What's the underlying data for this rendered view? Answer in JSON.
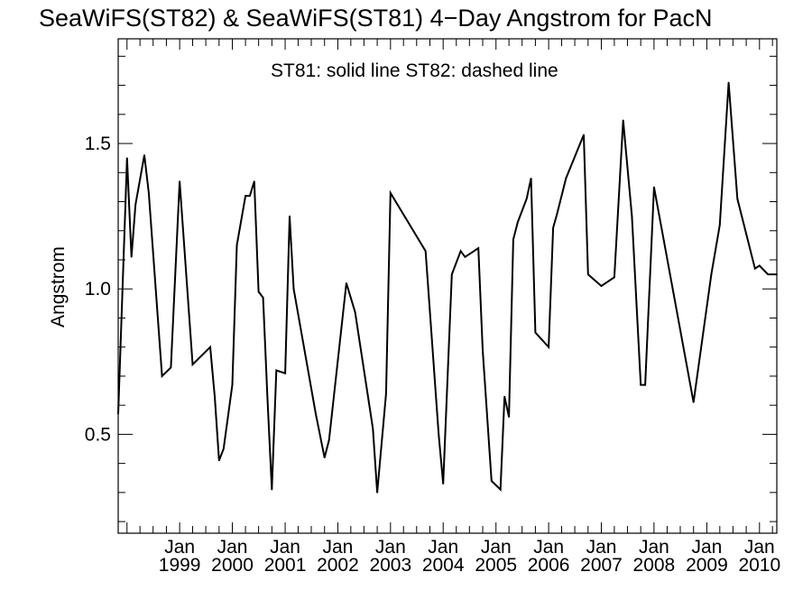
{
  "chart_data": {
    "type": "line",
    "title": "SeaWiFS(ST82) & SeaWiFS(ST81) 4−Day Angstrom for PacN",
    "annotation": "ST81: solid line   ST82: dashed line",
    "xlabel": "",
    "ylabel": "Angstrom",
    "ylim": [
      0.16,
      1.86
    ],
    "xlim": [
      "1997-11-01",
      "2010-05-01"
    ],
    "yticks": [
      {
        "value": 0.5,
        "label": "0.5"
      },
      {
        "value": 1.0,
        "label": "1.0"
      },
      {
        "value": 1.5,
        "label": "1.5"
      }
    ],
    "xticks": [
      {
        "date": "1999-01-01",
        "month": "Jan",
        "year": "1999"
      },
      {
        "date": "2000-01-01",
        "month": "Jan",
        "year": "2000"
      },
      {
        "date": "2001-01-01",
        "month": "Jan",
        "year": "2001"
      },
      {
        "date": "2002-01-01",
        "month": "Jan",
        "year": "2002"
      },
      {
        "date": "2003-01-01",
        "month": "Jan",
        "year": "2003"
      },
      {
        "date": "2004-01-01",
        "month": "Jan",
        "year": "2004"
      },
      {
        "date": "2005-01-01",
        "month": "Jan",
        "year": "2005"
      },
      {
        "date": "2006-01-01",
        "month": "Jan",
        "year": "2006"
      },
      {
        "date": "2007-01-01",
        "month": "Jan",
        "year": "2007"
      },
      {
        "date": "2008-01-01",
        "month": "Jan",
        "year": "2008"
      },
      {
        "date": "2009-01-01",
        "month": "Jan",
        "year": "2009"
      },
      {
        "date": "2010-01-01",
        "month": "Jan",
        "year": "2010"
      }
    ],
    "grid": false,
    "series": [
      {
        "name": "ST81",
        "style": "solid",
        "color": "#000000",
        "x": [
          "1997-11-01",
          "1998-01-01",
          "1998-02-01",
          "1998-03-01",
          "1998-05-01",
          "1998-06-01",
          "1998-08-01",
          "1998-09-01",
          "1998-11-01",
          "1999-01-01",
          "1999-04-01",
          "1999-08-01",
          "1999-09-01",
          "1999-10-01",
          "1999-11-01",
          "2000-01-01",
          "2000-02-01",
          "2000-04-01",
          "2000-05-01",
          "2000-06-01",
          "2000-07-01",
          "2000-08-01",
          "2000-09-01",
          "2000-10-01",
          "2000-11-01",
          "2001-01-01",
          "2001-02-01",
          "2001-03-01",
          "2001-08-01",
          "2001-10-01",
          "2001-11-01",
          "2002-03-01",
          "2002-05-01",
          "2002-09-01",
          "2002-10-01",
          "2002-12-01",
          "2003-01-01",
          "2003-09-01",
          "2003-12-01",
          "2004-01-01",
          "2004-03-01",
          "2004-05-01",
          "2004-06-01",
          "2004-09-01",
          "2004-10-01",
          "2004-12-01",
          "2005-02-01",
          "2005-03-01",
          "2005-04-01",
          "2005-05-01",
          "2005-06-01",
          "2005-08-01",
          "2005-09-01",
          "2005-10-01",
          "2006-01-01",
          "2006-02-01",
          "2006-03-01",
          "2006-05-01",
          "2006-09-01",
          "2006-10-01",
          "2007-01-01",
          "2007-04-01",
          "2007-06-01",
          "2007-08-01",
          "2007-10-01",
          "2007-11-01",
          "2008-01-01",
          "2008-10-01",
          "2009-02-01",
          "2009-04-01",
          "2009-06-01",
          "2009-08-01",
          "2009-12-01",
          "2010-01-01",
          "2010-03-01",
          "2010-04-01",
          "2010-05-01"
        ],
        "y": [
          0.57,
          1.45,
          1.11,
          1.29,
          1.46,
          1.33,
          0.91,
          0.7,
          0.73,
          1.37,
          0.74,
          0.8,
          0.63,
          0.41,
          0.45,
          0.67,
          1.15,
          1.32,
          1.32,
          1.37,
          0.99,
          0.97,
          0.62,
          0.31,
          0.72,
          0.71,
          1.25,
          1.0,
          0.57,
          0.42,
          0.48,
          1.02,
          0.92,
          0.52,
          0.3,
          0.64,
          1.33,
          1.13,
          0.5,
          0.33,
          1.05,
          1.13,
          1.11,
          1.14,
          0.79,
          0.34,
          0.31,
          0.63,
          0.56,
          1.17,
          1.23,
          1.31,
          1.38,
          0.85,
          0.8,
          1.21,
          1.26,
          1.38,
          1.53,
          1.05,
          1.01,
          1.04,
          1.58,
          1.25,
          0.67,
          0.67,
          1.35,
          0.61,
          1.05,
          1.22,
          1.71,
          1.31,
          1.07,
          1.08,
          1.05,
          1.05,
          1.05
        ]
      }
    ]
  }
}
